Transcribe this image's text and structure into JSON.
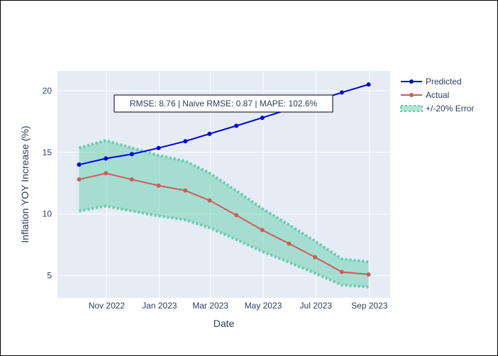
{
  "chart_data": {
    "type": "line",
    "xlabel": "Date",
    "ylabel": "Inflation YOY Increase (%)",
    "x_ticks": [
      "Nov 2022",
      "Jan 2023",
      "Mar 2023",
      "May 2023",
      "Jul 2023",
      "Sep 2023"
    ],
    "y_ticks": [
      5,
      10,
      15,
      20
    ],
    "ylim": [
      3.2,
      21.6
    ],
    "xlim": [
      "2022-09-05",
      "2023-09-25"
    ],
    "x": [
      "2022-09-30",
      "2022-10-31",
      "2022-11-30",
      "2022-12-31",
      "2023-01-31",
      "2023-02-28",
      "2023-03-31",
      "2023-04-30",
      "2023-05-31",
      "2023-06-30",
      "2023-07-31",
      "2023-08-31"
    ],
    "series": [
      {
        "name": "Predicted",
        "color": "#0000dd",
        "values": [
          14.0,
          14.5,
          14.85,
          15.35,
          15.9,
          16.5,
          17.15,
          17.8,
          18.5,
          19.15,
          19.85,
          20.5
        ]
      },
      {
        "name": "Actual",
        "color": "#cd5c5c",
        "values": [
          12.8,
          13.3,
          12.8,
          12.3,
          11.9,
          11.1,
          9.9,
          8.7,
          7.6,
          6.5,
          5.3,
          5.1
        ]
      },
      {
        "name": "+/-20% Error",
        "color": "#66cdaa",
        "upper": [
          15.36,
          15.96,
          15.36,
          14.76,
          14.28,
          13.32,
          11.88,
          10.44,
          9.12,
          7.8,
          6.36,
          6.12
        ],
        "lower": [
          10.24,
          10.64,
          10.24,
          9.84,
          9.52,
          8.88,
          7.92,
          6.96,
          6.08,
          5.2,
          4.24,
          4.08
        ]
      }
    ],
    "annotation": "RMSE: 8.76 | Naive RMSE: 0.87 | MAPE: 102.6%",
    "grid": true,
    "legend_position": "top-right",
    "plot_background": "#e5ecf6"
  }
}
